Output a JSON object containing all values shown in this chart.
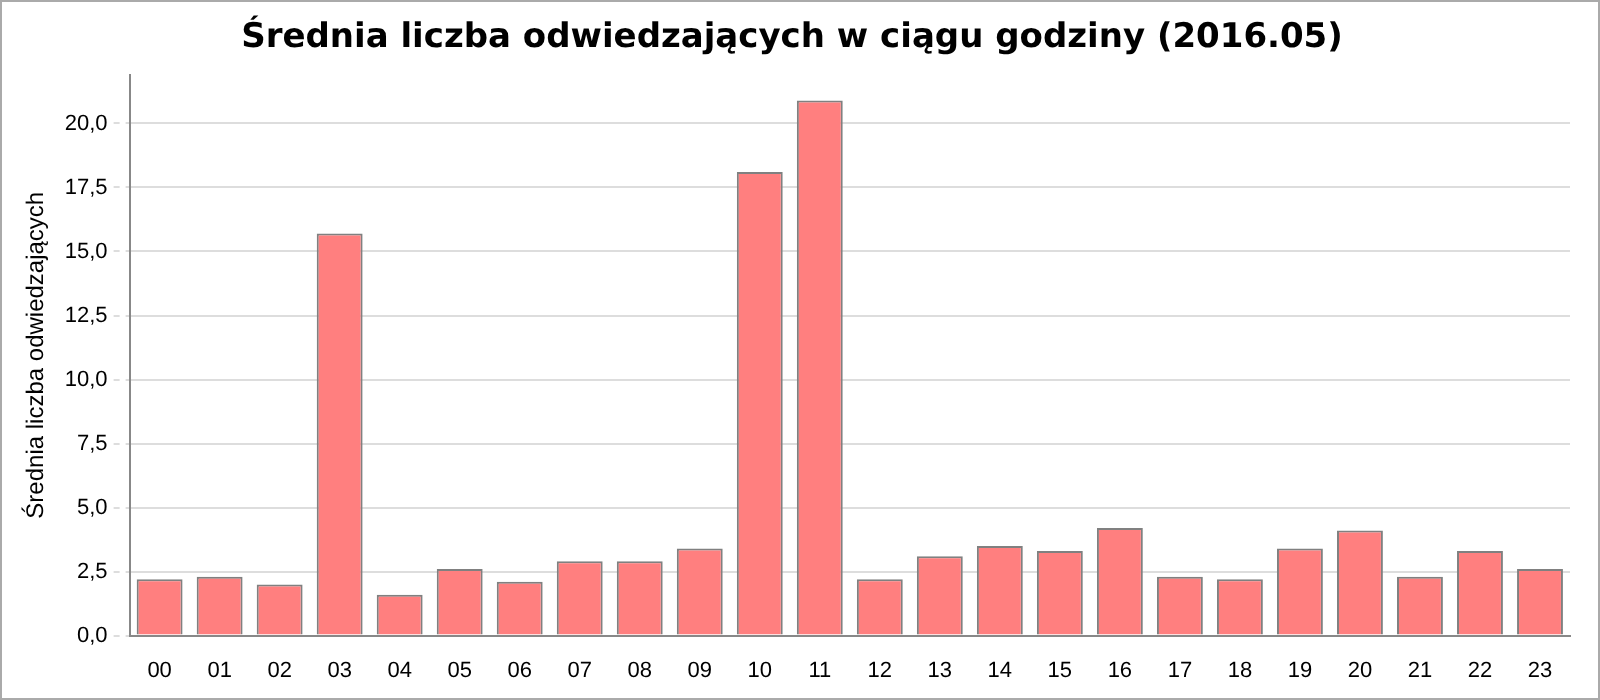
{
  "chart_data": {
    "type": "bar",
    "title": "Średnia liczba odwiedzających w ciągu godziny (2016.05)",
    "ylabel": "Średnia liczba odwiedzających",
    "categories": [
      "00",
      "01",
      "02",
      "03",
      "04",
      "05",
      "06",
      "07",
      "08",
      "09",
      "10",
      "11",
      "12",
      "13",
      "14",
      "15",
      "16",
      "17",
      "18",
      "19",
      "20",
      "21",
      "22",
      "23"
    ],
    "values": [
      2.2,
      2.3,
      2.0,
      15.7,
      1.6,
      2.6,
      2.1,
      2.9,
      2.9,
      3.4,
      18.1,
      20.9,
      2.2,
      3.1,
      3.5,
      3.3,
      4.2,
      2.3,
      2.2,
      3.4,
      4.1,
      2.3,
      3.3,
      2.6
    ],
    "color": "#ff7f7f",
    "ylim": [
      0,
      21.9
    ],
    "yticks": [
      {
        "value": 0,
        "label": "0,0"
      },
      {
        "value": 2.5,
        "label": "2,5"
      },
      {
        "value": 5,
        "label": "5,0"
      },
      {
        "value": 7.5,
        "label": "7,5"
      },
      {
        "value": 10,
        "label": "10,0"
      },
      {
        "value": 12.5,
        "label": "12,5"
      },
      {
        "value": 15,
        "label": "15,0"
      },
      {
        "value": 17.5,
        "label": "17,5"
      },
      {
        "value": 20,
        "label": "20,0"
      }
    ],
    "grid": "y"
  }
}
